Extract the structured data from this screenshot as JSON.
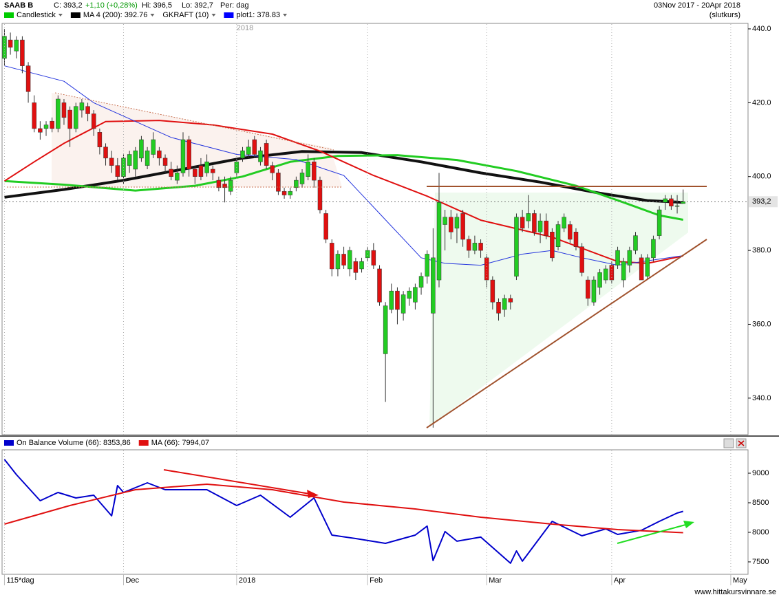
{
  "header": {
    "ticker": "SAAB B",
    "close": "C: 393,2",
    "change": "+1,10 (+0,28%)",
    "high": "Hi: 396,5",
    "low": "Lo: 392,7",
    "period": "Per: dag",
    "range": "03Nov 2017 - 20Apr 2018",
    "basis": "(slutkurs)",
    "year_marker": "2018"
  },
  "footer": {
    "site": "www.hittakursvinnare.se"
  },
  "chart_data": [
    {
      "type": "candlestick",
      "legend": [
        {
          "label": "Candlestick",
          "color": "#00cc00"
        },
        {
          "label": "MA 4 (200): 392.76",
          "color": "#000000"
        },
        {
          "label": "GKRAFT (10)"
        },
        {
          "label": "plot1: 378.83",
          "color": "#0000ff"
        }
      ],
      "up_color": "#22cc22",
      "down_color": "#e01010",
      "open": [
        432,
        437,
        434,
        437,
        430,
        420,
        413,
        413,
        415,
        413,
        420,
        418,
        413,
        418,
        419,
        417,
        412,
        408,
        405,
        403,
        400,
        403,
        402,
        405,
        403,
        406,
        407,
        405,
        402,
        399,
        401,
        410,
        402,
        403,
        401,
        402,
        399,
        398,
        396,
        401,
        405,
        406,
        410,
        404,
        409,
        403,
        401,
        396,
        395,
        397,
        398,
        400,
        404,
        399,
        390,
        382,
        375,
        379,
        375,
        377,
        375,
        378,
        380,
        375,
        352,
        364,
        369,
        363,
        367,
        366,
        370,
        373,
        363,
        372,
        387,
        389,
        386,
        390,
        383,
        380,
        382,
        378,
        372,
        366,
        364,
        367,
        373,
        389,
        388,
        390,
        385,
        388,
        385,
        381,
        386,
        387,
        385,
        381,
        372,
        366,
        370,
        372,
        376,
        376,
        372,
        376,
        380,
        378,
        373,
        378,
        384,
        393,
        394,
        392,
        392.7
      ],
      "high": [
        440,
        439,
        438,
        438,
        431,
        422,
        415,
        415,
        416,
        422,
        421,
        419,
        420,
        421,
        420,
        418,
        413,
        409,
        407,
        405,
        406,
        407,
        408,
        411,
        408,
        412,
        408,
        406,
        404,
        403,
        412,
        411,
        403,
        405,
        406,
        403,
        400,
        400,
        400,
        405,
        408,
        410,
        411,
        408,
        410,
        404,
        402,
        397,
        397,
        400,
        402,
        406,
        405,
        400,
        391,
        383,
        380,
        381,
        381,
        378,
        378,
        381,
        382,
        376,
        366,
        371,
        370,
        369,
        370,
        371,
        374,
        380,
        386,
        401,
        391,
        391,
        390,
        391,
        384,
        384,
        383,
        379,
        373,
        367,
        368,
        368,
        390,
        391,
        395,
        391,
        390,
        390,
        386,
        388,
        390,
        388,
        386,
        382,
        373,
        373,
        375,
        376,
        377,
        381,
        378,
        381,
        385,
        379,
        379,
        384,
        392,
        395,
        395,
        395,
        396.5
      ],
      "low": [
        430,
        433,
        432,
        428,
        420,
        412,
        410,
        411,
        412,
        412,
        414,
        408,
        412,
        416,
        415,
        411,
        406,
        403,
        401,
        399,
        398,
        401,
        400,
        404,
        402,
        405,
        403,
        401,
        399,
        398,
        400,
        400,
        398,
        399,
        400,
        399,
        396,
        393,
        395,
        400,
        404,
        405,
        405,
        403,
        402,
        399,
        395,
        394,
        394,
        396,
        397,
        399,
        397,
        390,
        382,
        373,
        373,
        375,
        373,
        372,
        374,
        377,
        375,
        365,
        339,
        363,
        360,
        361,
        365,
        364,
        368,
        371,
        332,
        370,
        380,
        383,
        382,
        381,
        378,
        379,
        378,
        370,
        364,
        361,
        362,
        364,
        372,
        385,
        386,
        384,
        382,
        383,
        377,
        380,
        385,
        382,
        380,
        373,
        365,
        365,
        368,
        371,
        371,
        375,
        370,
        374,
        379,
        372,
        372,
        377,
        383,
        391,
        391,
        390,
        392.7
      ],
      "close": [
        438,
        435,
        437,
        430,
        423,
        413,
        412,
        414,
        413,
        421,
        416,
        413,
        419,
        420,
        417,
        413,
        408,
        405,
        403,
        400,
        405,
        406,
        407,
        410,
        407,
        410,
        405,
        403,
        400,
        401,
        410,
        402,
        400,
        400,
        404,
        401,
        397,
        397,
        399,
        404,
        407,
        408,
        406,
        407,
        403,
        401,
        396,
        395,
        396,
        399,
        401,
        404,
        399,
        391,
        383,
        375,
        379,
        376,
        380,
        374,
        377,
        380,
        376,
        366,
        365,
        369,
        364,
        368,
        369,
        370,
        373,
        379,
        378,
        393,
        389,
        385,
        389,
        383,
        380,
        382,
        380,
        372,
        366,
        363,
        367,
        366,
        389,
        386,
        390,
        385,
        388,
        384,
        378,
        387,
        389,
        383,
        381,
        374,
        367,
        372,
        374,
        375,
        372,
        380,
        377,
        380,
        384,
        372,
        378,
        383,
        391,
        394,
        392,
        392.1,
        393.2
      ],
      "lines": [
        {
          "color": "#111111",
          "width": 4,
          "x": [
            0,
            10,
            20,
            30,
            40,
            50,
            60,
            70,
            80,
            90,
            100,
            108,
            114
          ],
          "values": [
            394.4,
            396.5,
            399,
            402,
            405,
            406.8,
            406.5,
            404,
            401,
            398.5,
            395.5,
            393.5,
            393
          ]
        },
        {
          "color": "#22cc22",
          "width": 3,
          "x": [
            0,
            10,
            22,
            32,
            40,
            48,
            56,
            66,
            76,
            86,
            96,
            104,
            110,
            114
          ],
          "values": [
            398.8,
            397.8,
            396.2,
            397.5,
            400,
            404,
            405.6,
            405.8,
            404.5,
            401.5,
            397.5,
            393,
            389.5,
            388.3
          ]
        },
        {
          "color": "#e01010",
          "width": 2,
          "x": [
            0,
            5,
            10,
            17,
            26,
            35,
            45,
            53,
            62,
            71,
            80,
            92,
            103,
            108,
            114
          ],
          "values": [
            398.8,
            404,
            409,
            414.9,
            415.2,
            414,
            411.5,
            406.9,
            400.3,
            394.7,
            388.2,
            383.6,
            377,
            376.5,
            378.5
          ]
        },
        {
          "color": "#2233dd",
          "width": 1,
          "x": [
            0,
            10,
            15,
            28,
            39,
            49,
            57,
            63,
            70,
            74,
            80,
            87,
            92,
            97,
            103,
            114
          ],
          "values": [
            430,
            425.8,
            420,
            410.6,
            406,
            404.6,
            400.3,
            390,
            378,
            376.5,
            376,
            379,
            380,
            378,
            376,
            378.6
          ]
        }
      ],
      "last_price": {
        "value": 393.2,
        "label": "393,2"
      },
      "xlim": [
        -0.4,
        124.9
      ],
      "ylim": [
        330.1,
        441.3
      ],
      "yticks": [
        {
          "value": 340,
          "label": "340.0"
        },
        {
          "value": 360,
          "label": "360.0"
        },
        {
          "value": 380,
          "label": "380.0"
        },
        {
          "value": 400,
          "label": "400.0"
        },
        {
          "value": 420,
          "label": "420.0"
        },
        {
          "value": 440,
          "label": "440.0"
        }
      ]
    },
    {
      "type": "line",
      "legend": [
        {
          "label": "On Balance Volume (66): 8353,86",
          "color": "#0000cc"
        },
        {
          "label": "MA (66): 7994,07",
          "color": "#e01010"
        }
      ],
      "series": [
        {
          "color": "#0000cc",
          "width": 2,
          "x": [
            0,
            2,
            6,
            9,
            12,
            15,
            18,
            19,
            20,
            24,
            27,
            34,
            39,
            43,
            48,
            52,
            55,
            59,
            64,
            69,
            71,
            72,
            74,
            76,
            80,
            85,
            86,
            87,
            92,
            97,
            101,
            103,
            107,
            110,
            113,
            114
          ],
          "values": [
            9233,
            8977,
            8535,
            8674,
            8581,
            8628,
            8279,
            8791,
            8674,
            8837,
            8721,
            8721,
            8453,
            8628,
            8256,
            8581,
            7953,
            7895,
            7814,
            7953,
            8105,
            7523,
            8012,
            7849,
            7919,
            7477,
            7686,
            7512,
            8186,
            7942,
            8058,
            7965,
            8035,
            8186,
            8326,
            8354
          ]
        },
        {
          "color": "#e01010",
          "width": 2,
          "x": [
            0,
            11,
            22,
            34,
            45,
            57,
            69,
            80,
            92,
            103,
            114
          ],
          "values": [
            8139,
            8453,
            8721,
            8814,
            8721,
            8512,
            8395,
            8256,
            8139,
            8046,
            7994
          ]
        }
      ],
      "xlim": [
        -0.4,
        124.9
      ],
      "xticks": [
        {
          "value": 0,
          "label": "115*dag"
        },
        {
          "value": 20,
          "label": "Dec"
        },
        {
          "value": 39,
          "label": "2018"
        },
        {
          "value": 61,
          "label": "Feb"
        },
        {
          "value": 81,
          "label": "Mar"
        },
        {
          "value": 102,
          "label": "Apr"
        },
        {
          "value": 122,
          "label": "May"
        }
      ],
      "ylim": [
        7290,
        9384
      ],
      "yticks": [
        7500,
        8000,
        8500,
        9000
      ]
    }
  ]
}
